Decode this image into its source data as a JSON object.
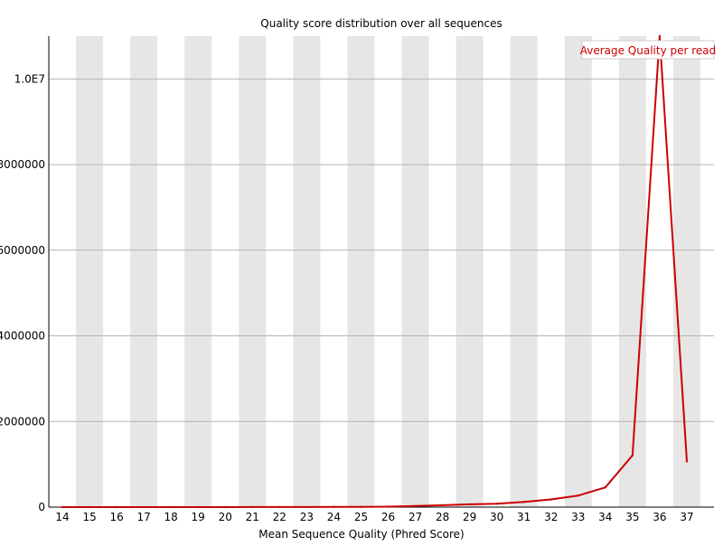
{
  "chart_data": {
    "type": "line",
    "title": "Quality score distribution over all sequences",
    "xlabel": "Mean Sequence Quality (Phred Score)",
    "ylabel": "",
    "x": [
      14,
      15,
      16,
      17,
      18,
      19,
      20,
      21,
      22,
      23,
      24,
      25,
      26,
      27,
      28,
      29,
      30,
      31,
      32,
      33,
      34,
      35,
      36,
      37
    ],
    "ylim": [
      0,
      11000000
    ],
    "y_ticks": [
      {
        "value": 0,
        "label": "0"
      },
      {
        "value": 2000000,
        "label": "2000000"
      },
      {
        "value": 4000000,
        "label": "4000000"
      },
      {
        "value": 6000000,
        "label": "6000000"
      },
      {
        "value": 8000000,
        "label": "8000000"
      },
      {
        "value": 10000000,
        "label": "1.0E7"
      }
    ],
    "series": [
      {
        "name": "Average Quality per read",
        "color": "#cc0000",
        "values": [
          100,
          150,
          200,
          300,
          400,
          600,
          900,
          1300,
          2000,
          3000,
          4500,
          7000,
          11000,
          25000,
          45000,
          65000,
          80000,
          120000,
          180000,
          270000,
          460000,
          1210000,
          11000000,
          1070000
        ]
      }
    ],
    "legend": "top-right",
    "grid": true,
    "stripe_color": "#e6e6e6",
    "gridline_color": "#b4b4b4"
  }
}
